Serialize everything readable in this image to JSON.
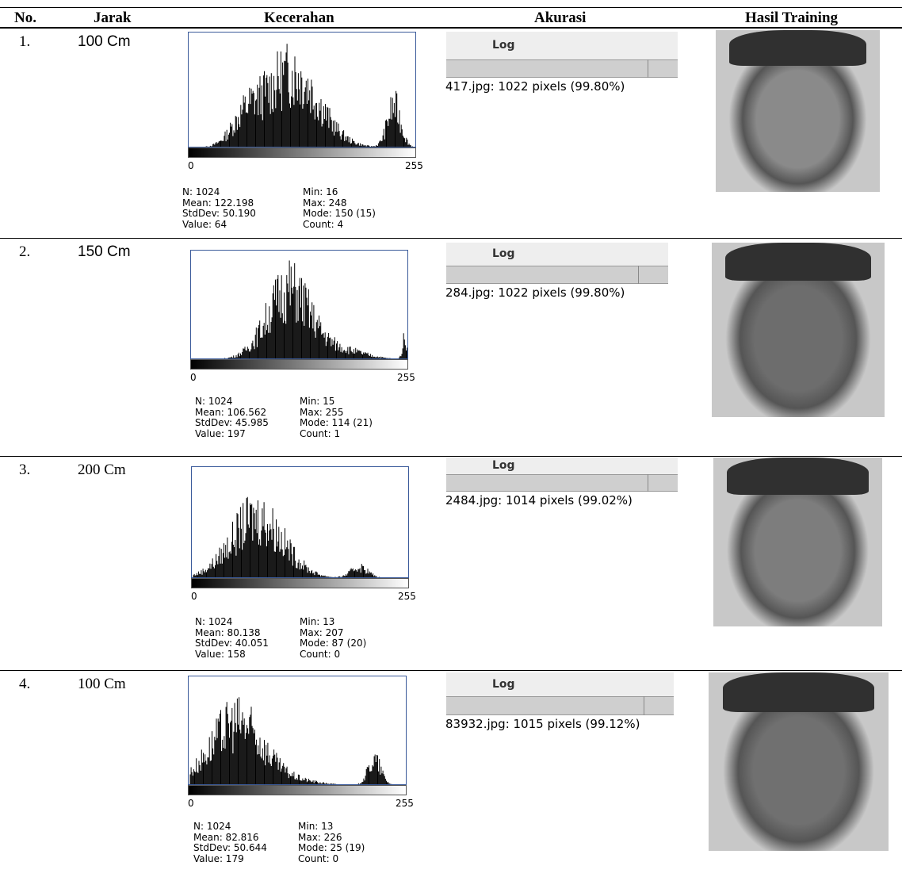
{
  "table": {
    "headers": [
      "No.",
      "Jarak",
      "Kecerahan",
      "Akurasi",
      "Hasil Training"
    ],
    "rows": [
      {
        "no": "1.",
        "jarak": "100 Cm",
        "histogram": {
          "axis_min": "0",
          "axis_max": "255",
          "stats": [
            [
              "N: 1024",
              "Min: 16"
            ],
            [
              "Mean: 122.198",
              "Max: 248"
            ],
            [
              "StdDev: 50.190",
              "Mode: 150 (15)"
            ],
            [
              "Value: 64",
              "Count: 4"
            ]
          ]
        },
        "log": {
          "title": "Log",
          "text": "417.jpg: 1022 pixels (99.80%)"
        }
      },
      {
        "no": "2.",
        "jarak": "150 Cm",
        "histogram": {
          "axis_min": "0",
          "axis_max": "255",
          "stats": [
            [
              "N: 1024",
              "Min: 15"
            ],
            [
              "Mean: 106.562",
              "Max: 255"
            ],
            [
              "StdDev: 45.985",
              "Mode: 114 (21)"
            ],
            [
              "Value: 197",
              "Count: 1"
            ]
          ]
        },
        "log": {
          "title": "Log",
          "text": "284.jpg: 1022 pixels (99.80%)"
        }
      },
      {
        "no": "3.",
        "jarak": "200 Cm",
        "histogram": {
          "axis_min": "0",
          "axis_max": "255",
          "stats": [
            [
              "N: 1024",
              "Min: 13"
            ],
            [
              "Mean: 80.138",
              "Max: 207"
            ],
            [
              "StdDev: 40.051",
              "Mode: 87 (20)"
            ],
            [
              "Value: 158",
              "Count: 0"
            ]
          ]
        },
        "log": {
          "title": "Log",
          "text": "2484.jpg: 1014 pixels (99.02%)"
        }
      },
      {
        "no": "4.",
        "jarak": "100 Cm",
        "histogram": {
          "axis_min": "0",
          "axis_max": "255",
          "stats": [
            [
              "N: 1024",
              "Min: 13"
            ],
            [
              "Mean: 82.816",
              "Max: 226"
            ],
            [
              "StdDev: 50.644",
              "Mode: 25 (19)"
            ],
            [
              "Value: 179",
              "Count: 0"
            ]
          ]
        },
        "log": {
          "title": "Log",
          "text": "83932.jpg: 1015 pixels (99.12%)"
        }
      }
    ]
  }
}
